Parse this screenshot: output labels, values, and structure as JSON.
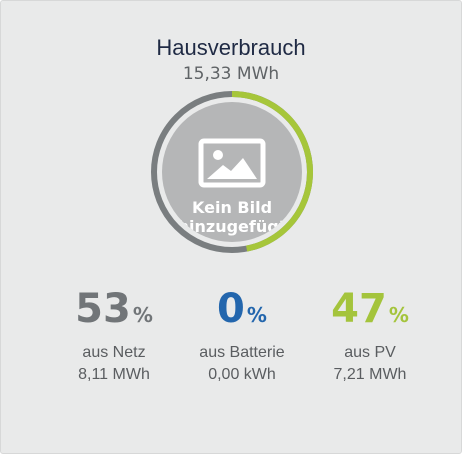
{
  "widget": {
    "title": "Hausverbrauch",
    "total": "15,33 MWh"
  },
  "donut": {
    "segments": [
      {
        "name": "aus Netz",
        "fraction": 0.53,
        "color": "#7a7e80"
      },
      {
        "name": "aus Batterie",
        "fraction": 0.0,
        "color": "#2b6cb0"
      },
      {
        "name": "aus PV",
        "fraction": 0.47,
        "color": "#a6c63a"
      }
    ],
    "placeholder_icon": "image-icon",
    "placeholder_text_line1": "Kein Bild",
    "placeholder_text_line2": "hinzugefügt"
  },
  "stats": {
    "netz": {
      "percent": "53",
      "symbol": "%",
      "label": "aus Netz",
      "value": "8,11 MWh",
      "color": "#717578"
    },
    "batterie": {
      "percent": "0",
      "symbol": "%",
      "label": "aus Batterie",
      "value": "0,00 kWh",
      "color": "#2366ad"
    },
    "pv": {
      "percent": "47",
      "symbol": "%",
      "label": "aus PV",
      "value": "7,21 MWh",
      "color": "#a4c43c"
    }
  }
}
